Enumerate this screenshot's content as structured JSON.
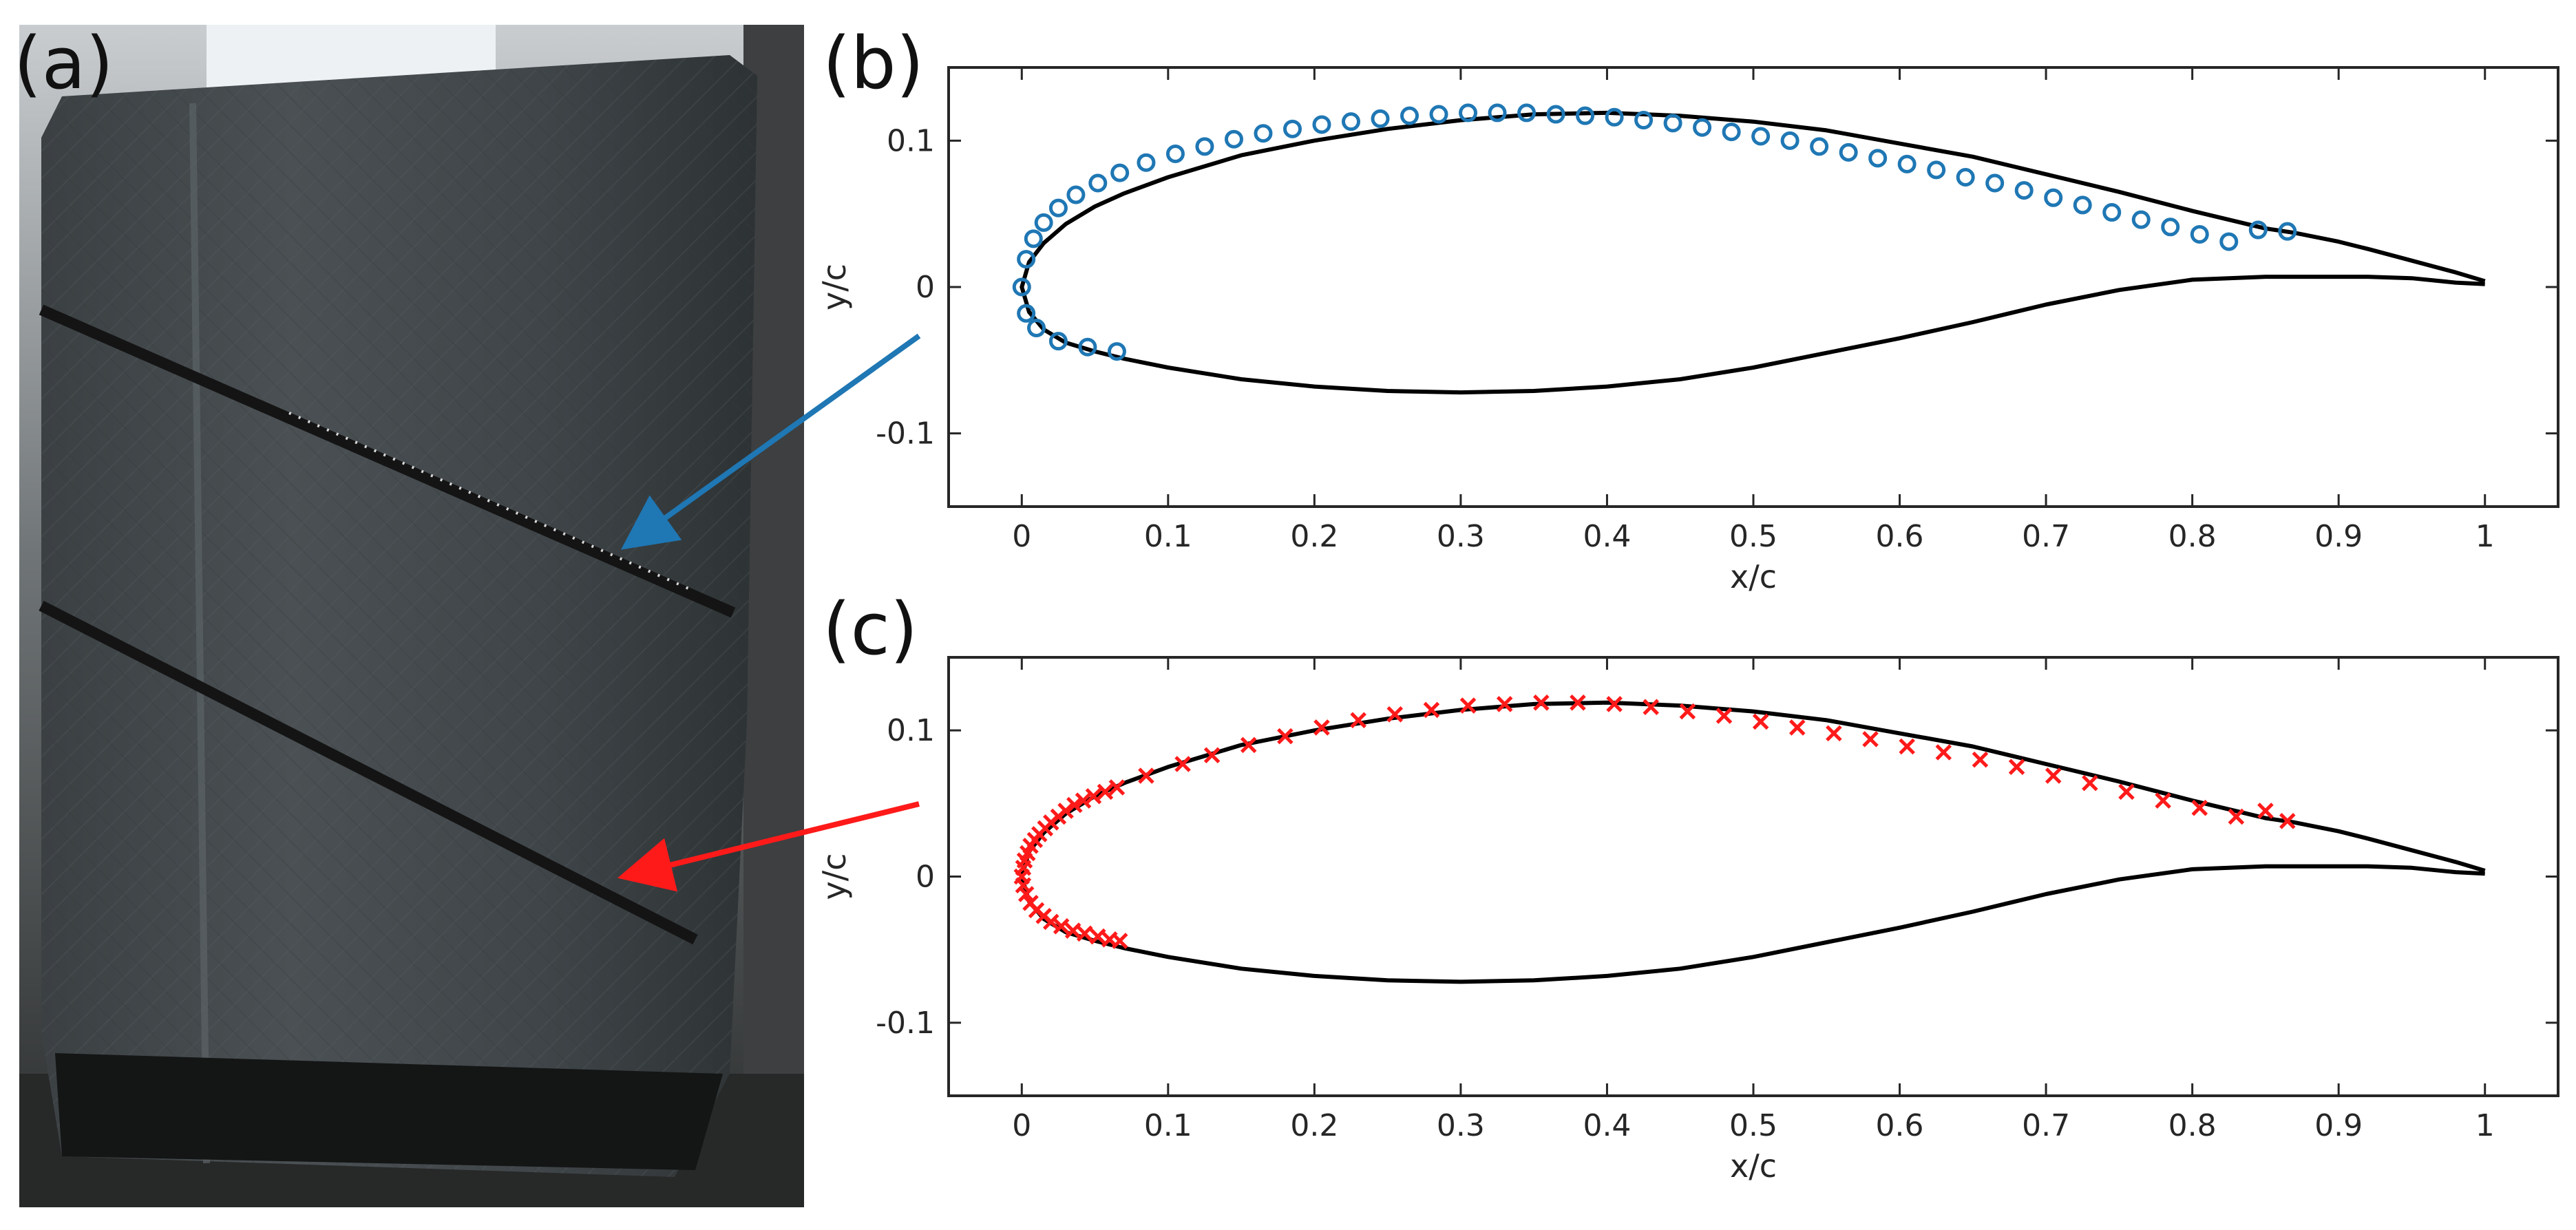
{
  "panel_labels": {
    "a": "(a)",
    "b": "(b)",
    "c": "(c)"
  },
  "colors": {
    "blue_marker": "#1f77b4",
    "red_marker": "#ff1a1a",
    "profile": "#000000",
    "blue_arrow": "#1f77b4",
    "red_arrow": "#ff1a1a"
  },
  "photo": {
    "icon": "wind-turbine-blade-photo"
  },
  "chart_data": [
    {
      "type": "line",
      "panel": "(b)",
      "xlabel": "x/c",
      "ylabel": "y/c",
      "xlim": [
        -0.05,
        1.05
      ],
      "ylim": [
        -0.15,
        0.15
      ],
      "xticks": [
        0,
        0.1,
        0.2,
        0.3,
        0.4,
        0.5,
        0.6,
        0.7,
        0.8,
        0.9,
        1
      ],
      "xtick_labels": [
        "0",
        "0.1",
        "0.2",
        "0.3",
        "0.4",
        "0.5",
        "0.6",
        "0.7",
        "0.8",
        "0.9",
        "1"
      ],
      "yticks": [
        -0.1,
        0,
        0.1
      ],
      "ytick_labels": [
        "-0.1",
        "0",
        "0.1"
      ],
      "grid": false,
      "series": [
        {
          "role": "profile",
          "x": [
            1.0,
            0.98,
            0.95,
            0.92,
            0.9,
            0.87,
            0.85,
            0.8,
            0.75,
            0.7,
            0.65,
            0.6,
            0.55,
            0.5,
            0.45,
            0.4,
            0.35,
            0.3,
            0.25,
            0.2,
            0.15,
            0.1,
            0.07,
            0.05,
            0.03,
            0.015,
            0.005,
            0.0,
            0.005,
            0.015,
            0.03,
            0.05,
            0.07,
            0.1,
            0.15,
            0.2,
            0.25,
            0.3,
            0.35,
            0.4,
            0.45,
            0.5,
            0.55,
            0.6,
            0.65,
            0.7,
            0.75,
            0.8,
            0.85,
            0.88,
            0.9,
            0.92,
            0.95,
            0.98,
            1.0
          ],
          "y": [
            0.004,
            0.01,
            0.018,
            0.026,
            0.031,
            0.037,
            0.04,
            0.052,
            0.065,
            0.077,
            0.089,
            0.098,
            0.107,
            0.113,
            0.117,
            0.119,
            0.118,
            0.114,
            0.108,
            0.1,
            0.09,
            0.075,
            0.064,
            0.055,
            0.043,
            0.03,
            0.017,
            0.0,
            -0.017,
            -0.029,
            -0.038,
            -0.044,
            -0.049,
            -0.055,
            -0.063,
            -0.068,
            -0.071,
            -0.072,
            -0.071,
            -0.068,
            -0.063,
            -0.055,
            -0.045,
            -0.035,
            -0.024,
            -0.012,
            -0.002,
            0.005,
            0.007,
            0.007,
            0.007,
            0.007,
            0.006,
            0.003,
            0.002
          ]
        },
        {
          "role": "markers",
          "marker": "circle",
          "x": [
            0.0,
            0.003,
            0.008,
            0.015,
            0.025,
            0.037,
            0.052,
            0.067,
            0.085,
            0.105,
            0.125,
            0.145,
            0.165,
            0.185,
            0.205,
            0.225,
            0.245,
            0.265,
            0.285,
            0.305,
            0.325,
            0.345,
            0.365,
            0.385,
            0.405,
            0.425,
            0.445,
            0.465,
            0.485,
            0.505,
            0.525,
            0.545,
            0.565,
            0.585,
            0.605,
            0.625,
            0.645,
            0.665,
            0.685,
            0.705,
            0.725,
            0.745,
            0.765,
            0.785,
            0.805,
            0.825,
            0.845,
            0.865,
            0.003,
            0.01,
            0.025,
            0.045,
            0.065
          ],
          "y": [
            0.0,
            0.019,
            0.033,
            0.044,
            0.054,
            0.063,
            0.071,
            0.078,
            0.085,
            0.091,
            0.096,
            0.101,
            0.105,
            0.108,
            0.111,
            0.113,
            0.115,
            0.117,
            0.118,
            0.119,
            0.119,
            0.119,
            0.118,
            0.117,
            0.116,
            0.114,
            0.112,
            0.109,
            0.106,
            0.103,
            0.1,
            0.096,
            0.092,
            0.088,
            0.084,
            0.08,
            0.075,
            0.071,
            0.066,
            0.061,
            0.056,
            0.051,
            0.046,
            0.041,
            0.036,
            0.031,
            0.039,
            0.038,
            -0.018,
            -0.028,
            -0.037,
            -0.041,
            -0.044
          ]
        }
      ]
    },
    {
      "type": "line",
      "panel": "(c)",
      "xlabel": "x/c",
      "ylabel": "y/c",
      "xlim": [
        -0.05,
        1.05
      ],
      "ylim": [
        -0.15,
        0.15
      ],
      "xticks": [
        0,
        0.1,
        0.2,
        0.3,
        0.4,
        0.5,
        0.6,
        0.7,
        0.8,
        0.9,
        1
      ],
      "xtick_labels": [
        "0",
        "0.1",
        "0.2",
        "0.3",
        "0.4",
        "0.5",
        "0.6",
        "0.7",
        "0.8",
        "0.9",
        "1"
      ],
      "yticks": [
        -0.1,
        0,
        0.1
      ],
      "ytick_labels": [
        "-0.1",
        "0",
        "0.1"
      ],
      "grid": false,
      "series": [
        {
          "role": "profile",
          "x": [
            1.0,
            0.98,
            0.95,
            0.92,
            0.9,
            0.87,
            0.85,
            0.8,
            0.75,
            0.7,
            0.65,
            0.6,
            0.55,
            0.5,
            0.45,
            0.4,
            0.35,
            0.3,
            0.25,
            0.2,
            0.15,
            0.1,
            0.07,
            0.05,
            0.03,
            0.015,
            0.005,
            0.0,
            0.005,
            0.015,
            0.03,
            0.05,
            0.07,
            0.1,
            0.15,
            0.2,
            0.25,
            0.3,
            0.35,
            0.4,
            0.45,
            0.5,
            0.55,
            0.6,
            0.65,
            0.7,
            0.75,
            0.8,
            0.85,
            0.88,
            0.9,
            0.92,
            0.95,
            0.98,
            1.0
          ],
          "y": [
            0.004,
            0.01,
            0.018,
            0.026,
            0.031,
            0.037,
            0.04,
            0.052,
            0.065,
            0.077,
            0.089,
            0.098,
            0.107,
            0.113,
            0.117,
            0.119,
            0.118,
            0.114,
            0.108,
            0.1,
            0.09,
            0.075,
            0.064,
            0.055,
            0.043,
            0.03,
            0.017,
            0.0,
            -0.017,
            -0.029,
            -0.038,
            -0.044,
            -0.049,
            -0.055,
            -0.063,
            -0.068,
            -0.071,
            -0.072,
            -0.071,
            -0.068,
            -0.063,
            -0.055,
            -0.045,
            -0.035,
            -0.024,
            -0.012,
            -0.002,
            0.005,
            0.007,
            0.007,
            0.007,
            0.007,
            0.006,
            0.003,
            0.002
          ]
        },
        {
          "role": "markers",
          "marker": "cross",
          "x": [
            0.0,
            0.001,
            0.002,
            0.004,
            0.006,
            0.009,
            0.012,
            0.016,
            0.02,
            0.025,
            0.03,
            0.036,
            0.042,
            0.049,
            0.057,
            0.065,
            0.085,
            0.11,
            0.13,
            0.155,
            0.18,
            0.205,
            0.23,
            0.255,
            0.28,
            0.305,
            0.33,
            0.355,
            0.38,
            0.405,
            0.43,
            0.455,
            0.48,
            0.505,
            0.53,
            0.555,
            0.58,
            0.605,
            0.63,
            0.655,
            0.68,
            0.705,
            0.73,
            0.755,
            0.78,
            0.805,
            0.83,
            0.85,
            0.865,
            0.001,
            0.003,
            0.006,
            0.01,
            0.015,
            0.02,
            0.027,
            0.035,
            0.043,
            0.052,
            0.06,
            0.067
          ],
          "y": [
            0.0,
            0.006,
            0.011,
            0.016,
            0.021,
            0.025,
            0.029,
            0.033,
            0.037,
            0.041,
            0.045,
            0.049,
            0.052,
            0.055,
            0.058,
            0.061,
            0.069,
            0.077,
            0.083,
            0.09,
            0.096,
            0.102,
            0.107,
            0.111,
            0.114,
            0.117,
            0.118,
            0.119,
            0.119,
            0.118,
            0.116,
            0.113,
            0.11,
            0.106,
            0.102,
            0.098,
            0.094,
            0.089,
            0.085,
            0.08,
            0.075,
            0.069,
            0.064,
            0.058,
            0.052,
            0.047,
            0.041,
            0.045,
            0.038,
            -0.006,
            -0.012,
            -0.018,
            -0.023,
            -0.027,
            -0.031,
            -0.034,
            -0.037,
            -0.039,
            -0.041,
            -0.043,
            -0.044
          ]
        }
      ]
    }
  ]
}
